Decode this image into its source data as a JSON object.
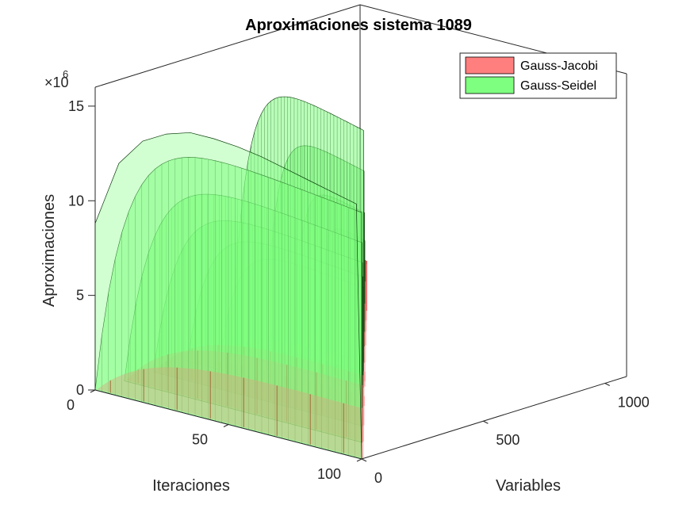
{
  "chart_data": {
    "type": "bar3",
    "title": "Aproximaciones sistema 1089",
    "exponent_label": "×10",
    "exponent_power": "6",
    "xlabel": "Iteraciones",
    "ylabel": "Variables",
    "zlabel": "Aproximaciones",
    "xlim": [
      0,
      100
    ],
    "ylim": [
      0,
      1089
    ],
    "zlim": [
      0,
      16000000
    ],
    "xticks": [
      0,
      50,
      100
    ],
    "yticks": [
      0,
      500,
      1000
    ],
    "zticks": [
      0,
      5,
      10,
      15
    ],
    "grid": false,
    "legend_position": "top-right",
    "series": [
      {
        "name": "Gauss-Jacobi",
        "color": "#ff7f7f",
        "peak_values": [
          3000000,
          3400000,
          3000000,
          2500000,
          1800000,
          1200000,
          900000,
          600000
        ]
      },
      {
        "name": "Gauss-Seidel",
        "color": "#7fff7f",
        "front_wall": {
          "variable": 0,
          "values": [
            8800000,
            12300000,
            13800000,
            14500000,
            14900000,
            14900000,
            14800000,
            14600000,
            14300000,
            14000000,
            13700000,
            13400000
          ]
        },
        "inner_walls": [
          {
            "variable": 0,
            "peak": 14800000
          },
          {
            "variable": 120,
            "peak": 12000000
          },
          {
            "variable": 240,
            "peak": 9800000
          },
          {
            "variable": 380,
            "peak": 7800000
          },
          {
            "variable": 520,
            "peak": 6000000
          },
          {
            "variable": 560,
            "peak": 15100000
          },
          {
            "variable": 700,
            "peak": 11500000
          },
          {
            "variable": 820,
            "peak": 8000000
          },
          {
            "variable": 920,
            "peak": 5500000
          },
          {
            "variable": 1000,
            "peak": 3000000
          },
          {
            "variable": 1070,
            "peak": 1500000
          }
        ]
      }
    ]
  }
}
